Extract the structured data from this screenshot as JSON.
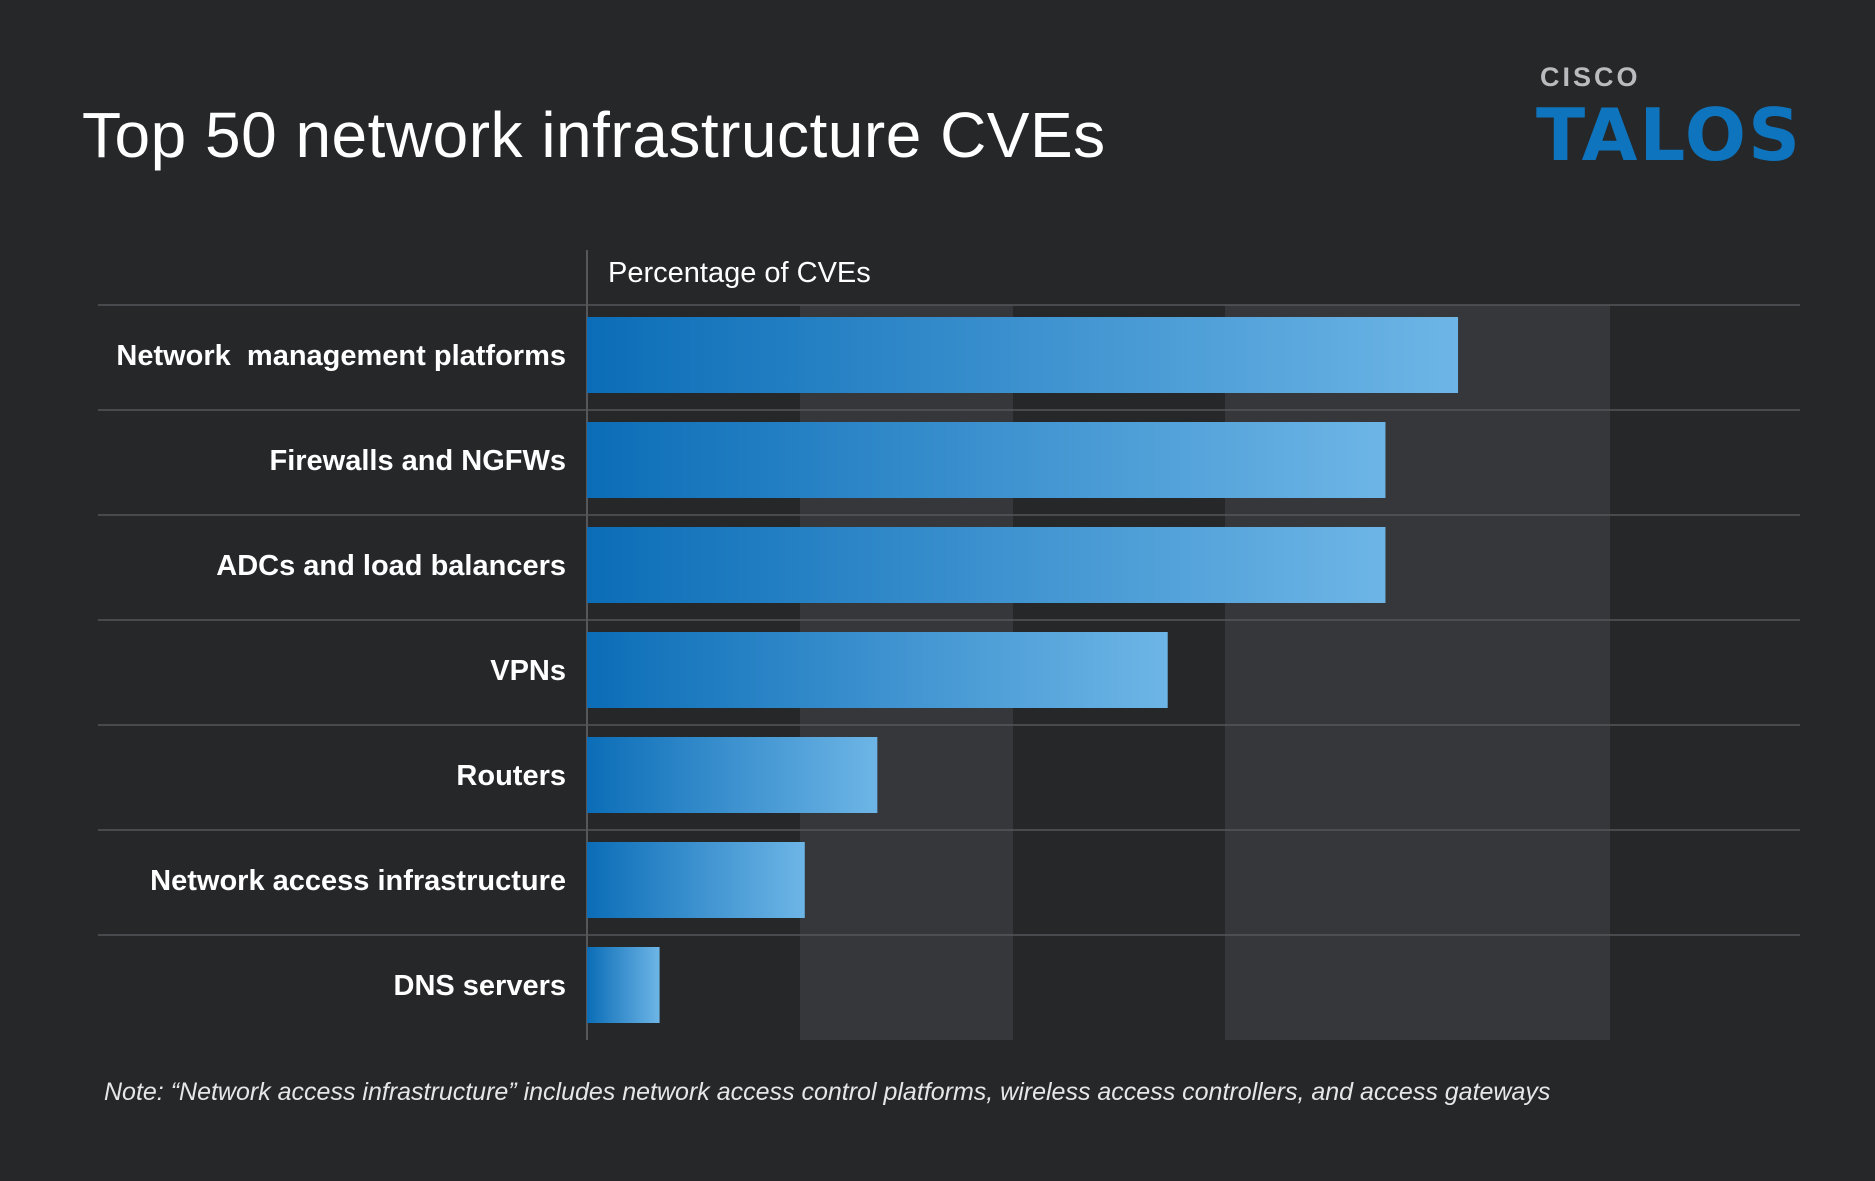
{
  "header": {
    "title": "Top 50 network infrastructure CVEs"
  },
  "logo": {
    "cisco_text": "CISCO",
    "talos_text": "TALOS",
    "colors": {
      "cisco": "#b9bbbe",
      "talos": "#0d74bd"
    }
  },
  "chart_data": {
    "type": "bar",
    "orientation": "horizontal",
    "title": "Top 50 network infrastructure CVEs",
    "xlabel": "Percentage of CVEs",
    "ylabel": "",
    "categories": [
      "Network  management platforms",
      "Firewalls and NGFWs",
      "ADCs and load balancers",
      "VPNs",
      "Routers",
      "Network access infrastructure",
      "DNS servers"
    ],
    "values": [
      24,
      22,
      22,
      16,
      8,
      6,
      2
    ],
    "xlim": [
      0,
      28.6
    ],
    "grid_bands": true,
    "legend": "none",
    "colors": {
      "bar_start": "#0b6db7",
      "bar_end": "#6db5e6",
      "band": "#35373b",
      "rule": "#55575b"
    }
  },
  "footer": {
    "note": "Note: “Network access infrastructure” includes network access control platforms, wireless access controllers, and access gateways"
  }
}
